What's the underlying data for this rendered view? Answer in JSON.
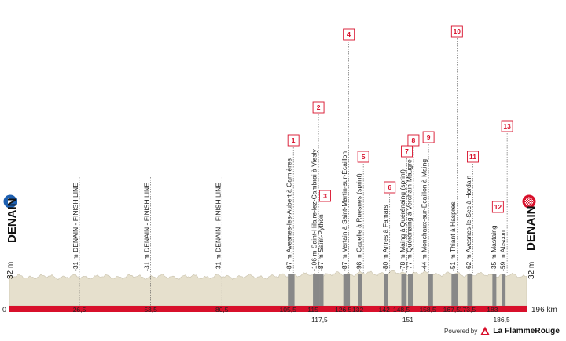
{
  "chart_data": {
    "type": "area",
    "title": "",
    "start": {
      "town": "DENAIN",
      "altitude": "32 m"
    },
    "finish": {
      "town": "DENAIN",
      "altitude": "32 m"
    },
    "total_distance_label": "196 km",
    "axis_start_label": "0",
    "xlim": [
      0,
      196
    ],
    "km_marks": [
      {
        "km": 26.5,
        "label": "26,5",
        "row": 0
      },
      {
        "km": 53.5,
        "label": "53,5",
        "row": 0
      },
      {
        "km": 80.5,
        "label": "80,5",
        "row": 0
      },
      {
        "km": 105.5,
        "label": "105,5",
        "row": 0
      },
      {
        "km": 115,
        "label": "115",
        "row": 0
      },
      {
        "km": 117.5,
        "label": "117,5",
        "row": 1
      },
      {
        "km": 126.5,
        "label": "126,5",
        "row": 0
      },
      {
        "km": 132,
        "label": "132",
        "row": 0
      },
      {
        "km": 142,
        "label": "142",
        "row": 0
      },
      {
        "km": 148.5,
        "label": "148,5",
        "row": 0
      },
      {
        "km": 151,
        "label": "151",
        "row": 1
      },
      {
        "km": 158.5,
        "label": "158,5",
        "row": 0
      },
      {
        "km": 167.5,
        "label": "167,5",
        "row": 0
      },
      {
        "km": 173.5,
        "label": "173,5",
        "row": 0
      },
      {
        "km": 183,
        "label": "183",
        "row": 0
      },
      {
        "km": 186.5,
        "label": "186,5",
        "row": 1
      }
    ],
    "finish_line_passes": [
      {
        "km": 26.5,
        "label": "-31 m DENAIN - FINISH LINE"
      },
      {
        "km": 53.5,
        "label": "-31 m DENAIN - FINISH LINE"
      },
      {
        "km": 80.5,
        "label": "-31 m DENAIN - FINISH LINE"
      }
    ],
    "cobbled_sectors": [
      {
        "number": "1",
        "km_start": 105.5,
        "km_end": 108.0,
        "label": "-87 m Avesnes-les-Aubert à Carnières"
      },
      {
        "number": "2",
        "km_start": 115.0,
        "km_end": 117.5,
        "label": "-106 m Saint-Hilaire-lez-Cambrai à Viesly"
      },
      {
        "number": "3",
        "km_start": 117.5,
        "km_end": 119.0,
        "label": "-87 m Saint-Python"
      },
      {
        "number": "4",
        "km_start": 126.5,
        "km_end": 129.0,
        "label": "-87 m Vertain à Saint-Martin-sur-Écaillon"
      },
      {
        "number": "5",
        "km_start": 132.0,
        "km_end": 133.5,
        "label": "-98 m Capelle à Ruesnes (sprint)"
      },
      {
        "number": "6",
        "km_start": 142.0,
        "km_end": 143.5,
        "label": "-80 m Artres à Famars"
      },
      {
        "number": "7",
        "km_start": 148.5,
        "km_end": 150.5,
        "label": "-78 m Maing à Quérénaing (sprint)"
      },
      {
        "number": "8",
        "km_start": 151.0,
        "km_end": 153.0,
        "label": "-77 m Quérénaing à Verchain-Maugré"
      },
      {
        "number": "9",
        "km_start": 158.5,
        "km_end": 160.5,
        "label": "-44 m Monchaux-sur-Écaillon à Maing"
      },
      {
        "number": "10",
        "km_start": 167.5,
        "km_end": 170.0,
        "label": "-51 m Thiant à Haspres"
      },
      {
        "number": "11",
        "km_start": 173.5,
        "km_end": 175.5,
        "label": "-62 m Avesnes-le-Sec à Hordain"
      },
      {
        "number": "12",
        "km_start": 183.0,
        "km_end": 184.5,
        "label": "-35 m Mastaing"
      },
      {
        "number": "13",
        "km_start": 186.5,
        "km_end": 188.0,
        "label": "-59 m Abscon"
      }
    ],
    "colors": {
      "terrain": "#e6e0cd",
      "terrain_edge": "#c9c2ad",
      "distance_bar": "#d8102b",
      "cobbles": "#888888",
      "start_marker": "#1d5fb0",
      "finish_marker": "#d8102b",
      "sector_flag": "#d8102b",
      "leader": "#555555"
    }
  },
  "footer": {
    "powered_by": "Powered by",
    "brand": "La FlammeRouge"
  },
  "icons": {
    "start": "play-arrow-icon",
    "finish": "checkered-flag-icon",
    "brand": "flame-logo-icon"
  }
}
